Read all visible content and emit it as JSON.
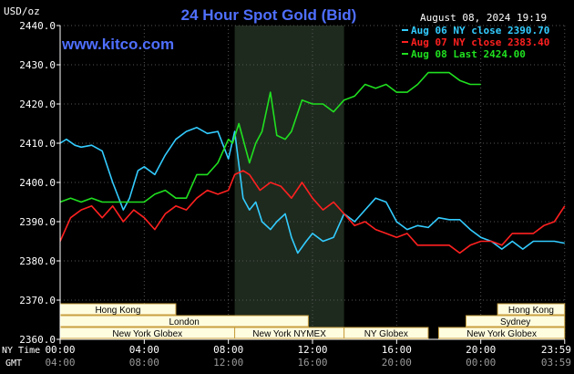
{
  "header": {
    "title": "24 Hour Spot Gold (Bid)",
    "unit": "USD/oz",
    "timestamp": "August 08, 2024 19:19",
    "source": "www.kitco.com"
  },
  "colors": {
    "background": "#000000",
    "title": "#4f6fff",
    "aug06": "#33ccff",
    "aug07": "#ff2020",
    "aug08": "#20e020",
    "session_fill": "#fffde0",
    "session_border": "#c8a040",
    "shade": "#1e2a1e",
    "grid": "#555555"
  },
  "chart_data": {
    "type": "line",
    "title": "24 Hour Spot Gold (Bid)",
    "ylabel": "USD/oz",
    "ylim": [
      2360,
      2440
    ],
    "yticks": [
      "2440.0",
      "2430.0",
      "2420.0",
      "2410.0",
      "2400.0",
      "2390.0",
      "2380.0",
      "2370.0",
      "2360.0"
    ],
    "xlim": [
      0,
      24
    ],
    "ny_time_label": "NY Time",
    "gmt_label": "GMT",
    "ny_ticks": [
      "00:00",
      "04:00",
      "08:00",
      "12:00",
      "16:00",
      "20:00",
      "23:59"
    ],
    "gmt_ticks": [
      "04:00",
      "08:00",
      "12:00",
      "16:00",
      "20:00",
      "00:00",
      "03:59"
    ],
    "shaded_range": [
      8.3,
      13.5
    ],
    "legend": [
      {
        "key": "aug06",
        "label": "Aug 06 NY close 2390.70"
      },
      {
        "key": "aug07",
        "label": "Aug 07 NY close 2383.40"
      },
      {
        "key": "aug08",
        "label": "Aug 08 Last 2424.00"
      }
    ],
    "series": [
      {
        "name": "Aug 06 NY close 2390.70",
        "key": "aug06",
        "x": [
          0,
          0.3,
          0.7,
          1,
          1.5,
          2,
          2.5,
          3,
          3.3,
          3.7,
          4,
          4.5,
          5,
          5.5,
          6,
          6.5,
          7,
          7.5,
          8,
          8.3,
          8.7,
          9,
          9.3,
          9.6,
          10,
          10.3,
          10.7,
          11,
          11.3,
          11.7,
          12,
          12.5,
          13,
          13.5,
          14,
          14.5,
          15,
          15.5,
          16,
          16.5,
          17,
          17.5,
          18,
          18.5,
          19,
          19.5,
          20,
          20.5,
          21,
          21.5,
          22,
          22.5,
          23,
          23.5,
          23.99
        ],
        "y": [
          2410,
          2411,
          2409.5,
          2409,
          2409.5,
          2408,
          2400,
          2393,
          2396,
          2403,
          2404,
          2402,
          2407,
          2411,
          2413,
          2414,
          2412.5,
          2413,
          2406,
          2413,
          2396,
          2393,
          2395,
          2390,
          2388,
          2390,
          2392,
          2386,
          2382,
          2385,
          2387,
          2385,
          2386,
          2392,
          2390,
          2393,
          2396,
          2395,
          2390,
          2388,
          2389,
          2388.5,
          2391,
          2390.5,
          2390.5,
          2388,
          2386,
          2385,
          2383,
          2385,
          2383,
          2385,
          2385,
          2385,
          2384.5
        ]
      },
      {
        "name": "Aug 07 NY close 2383.40",
        "key": "aug07",
        "x": [
          0,
          0.5,
          1,
          1.5,
          2,
          2.5,
          3,
          3.5,
          4,
          4.5,
          5,
          5.5,
          6,
          6.5,
          7,
          7.5,
          8,
          8.3,
          8.7,
          9,
          9.5,
          10,
          10.5,
          11,
          11.5,
          12,
          12.5,
          13,
          13.5,
          14,
          14.5,
          15,
          15.5,
          16,
          16.5,
          17,
          17.5,
          18,
          18.5,
          19,
          19.5,
          20,
          20.5,
          21,
          21.5,
          22,
          22.5,
          23,
          23.5,
          23.99
        ],
        "y": [
          2385,
          2391,
          2393,
          2394,
          2391,
          2394,
          2390,
          2393,
          2391,
          2388,
          2392,
          2394,
          2393,
          2396,
          2398,
          2397,
          2398,
          2402,
          2403,
          2402,
          2398,
          2400,
          2399,
          2396,
          2400,
          2396,
          2393,
          2395,
          2392,
          2389,
          2390,
          2388,
          2387,
          2386,
          2387,
          2384,
          2384,
          2384,
          2384,
          2382,
          2384,
          2385,
          2385,
          2384,
          2387,
          2387,
          2387,
          2389,
          2390,
          2394
        ]
      },
      {
        "name": "Aug 08 Last 2424.00",
        "key": "aug08",
        "x": [
          0,
          0.5,
          1,
          1.5,
          2,
          2.5,
          3,
          3.5,
          4,
          4.5,
          5,
          5.5,
          6,
          6.5,
          7,
          7.5,
          8,
          8.2,
          8.5,
          9,
          9.3,
          9.6,
          10,
          10.3,
          10.7,
          11,
          11.5,
          12,
          12.5,
          13,
          13.5,
          14,
          14.5,
          15,
          15.5,
          16,
          16.5,
          17,
          17.5,
          18,
          18.5,
          19,
          19.5,
          20
        ],
        "y": [
          2395,
          2396,
          2395,
          2396,
          2395,
          2395,
          2395,
          2395,
          2395,
          2397,
          2398,
          2396,
          2396,
          2402,
          2402,
          2405,
          2411,
          2410,
          2415,
          2405,
          2410,
          2413,
          2423,
          2412,
          2411,
          2413,
          2421,
          2420,
          2420,
          2418,
          2421,
          2422,
          2425,
          2424,
          2425,
          2423,
          2423,
          2425,
          2428,
          2428,
          2428,
          2426,
          2425,
          2425
        ]
      }
    ]
  },
  "sessions": {
    "row1": [
      {
        "label": "Hong Kong",
        "start": 0,
        "end": 5.5
      },
      {
        "label": "Hong Kong",
        "start": 20.8,
        "end": 23.99
      }
    ],
    "row2": [
      {
        "label": "London",
        "start": 0,
        "end": 11.8
      },
      {
        "label": "Sydney",
        "start": 19.3,
        "end": 23.99
      }
    ],
    "row3": [
      {
        "label": "New York Globex",
        "start": 0,
        "end": 8.3
      },
      {
        "label": "New York NYMEX",
        "start": 8.3,
        "end": 13.5
      },
      {
        "label": "NY Globex",
        "start": 13.5,
        "end": 17.5
      },
      {
        "label": "New York Globex",
        "start": 18,
        "end": 23.99
      }
    ]
  }
}
